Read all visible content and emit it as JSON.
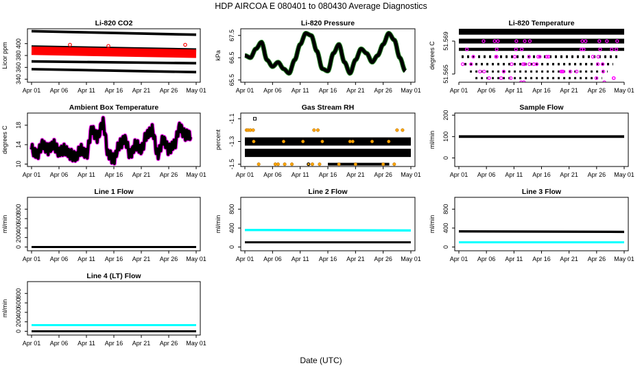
{
  "title": "HDP    AIRCOA E    080401 to 080430    Average Diagnostics",
  "xlabel": "Date (UTC)",
  "x_ticks": [
    "Apr 01",
    "Apr 06",
    "Apr 11",
    "Apr 16",
    "Apr 21",
    "Apr 26",
    "May 01"
  ],
  "colors": {
    "black": "#000000",
    "red": "#ff0000",
    "green": "#2e8b2e",
    "magenta": "#ff00ff",
    "orange": "#ffa500",
    "cyan": "#00ffff",
    "blue": "#2030c0"
  },
  "chart_data": [
    {
      "id": "co2",
      "type": "scatter",
      "title": "Li-820 CO2",
      "ylabel": "Licor ppm",
      "yticks": [
        "340",
        "360",
        "380",
        "400"
      ],
      "ylim": [
        335,
        425
      ],
      "series": [
        {
          "name": "high",
          "color": "black",
          "mode": "line",
          "y0": 421,
          "y1": 415
        },
        {
          "name": "upper",
          "color": "black",
          "mode": "line",
          "y0": 395,
          "y1": 390
        },
        {
          "name": "sample",
          "color": "red",
          "mode": "band",
          "y0": 388,
          "y1": 383,
          "spread": 5
        },
        {
          "name": "low-mid",
          "color": "black",
          "mode": "line",
          "y0": 370,
          "y1": 367
        },
        {
          "name": "low",
          "color": "black",
          "mode": "line",
          "y0": 357,
          "y1": 352
        }
      ]
    },
    {
      "id": "pressure",
      "type": "line",
      "title": "Li-820 Pressure",
      "ylabel": "kPa",
      "yticks": [
        "65.5",
        "66.5",
        "67.5"
      ],
      "ylim": [
        65.4,
        67.8
      ],
      "series": [
        {
          "name": "pressure",
          "color": "black",
          "outline": "green",
          "x": [
            0,
            1,
            2,
            3,
            4,
            5,
            6,
            7,
            8,
            9,
            10,
            11,
            12,
            13,
            14,
            15,
            16,
            17,
            18,
            19,
            20,
            21,
            22,
            23,
            24,
            25,
            26,
            27,
            28,
            29
          ],
          "y": [
            66.6,
            66.5,
            66.9,
            67.2,
            66.4,
            66.1,
            66.3,
            66.0,
            65.8,
            66.4,
            67.1,
            67.6,
            67.5,
            66.8,
            66.0,
            65.9,
            66.7,
            67.1,
            66.3,
            65.8,
            66.4,
            66.9,
            66.7,
            66.3,
            66.6,
            67.1,
            67.6,
            67.3,
            66.5,
            65.9
          ]
        }
      ]
    },
    {
      "id": "licor_temp",
      "type": "scatter",
      "title": "Li-820 Temperature",
      "ylabel": "degrees C",
      "yticks": [
        "51.565",
        "51.569"
      ],
      "ylim": [
        51.564,
        51.5705
      ],
      "levels": [
        51.5702,
        51.569,
        51.568,
        51.5671,
        51.5662,
        51.5653,
        51.5645
      ],
      "series": [
        {
          "name": "temp",
          "color": "black"
        },
        {
          "name": "outliers",
          "color": "magenta"
        }
      ]
    },
    {
      "id": "ambient",
      "type": "line",
      "title": "Ambient Box Temperature",
      "ylabel": "degrees C",
      "yticks": [
        "10",
        "14",
        "18"
      ],
      "ylim": [
        9.5,
        20.5
      ],
      "series": [
        {
          "name": "ambient",
          "color": "black",
          "outline": "magenta",
          "x": [
            0,
            1,
            2,
            3,
            4,
            5,
            6,
            7,
            8,
            9,
            10,
            11,
            12,
            13,
            14,
            15,
            16,
            17,
            18,
            19,
            20,
            21,
            22,
            23,
            24,
            25,
            26,
            27,
            28,
            29
          ],
          "y": [
            13,
            12,
            14,
            13,
            14,
            12.5,
            13,
            12,
            11.5,
            13,
            12,
            17,
            15.5,
            18.5,
            12,
            11,
            14,
            15,
            12,
            14,
            13,
            16,
            17,
            12,
            15,
            13,
            14,
            17.5,
            16,
            16
          ]
        }
      ]
    },
    {
      "id": "rh",
      "type": "scatter",
      "title": "Gas Stream RH",
      "ylabel": "percent",
      "yticks": [
        "-1.5",
        "-1.3",
        "-1.1"
      ],
      "ylim": [
        -1.52,
        -1.05
      ],
      "series": [
        {
          "name": "mid",
          "color": "black",
          "mode": "line",
          "y0": -1.3,
          "y1": -1.3
        },
        {
          "name": "low",
          "color": "black",
          "mode": "line",
          "y0": -1.4,
          "y1": -1.4
        },
        {
          "name": "bottom",
          "color": "black",
          "mode": "segment",
          "y0": -1.5,
          "x0": 0.5,
          "x1": 0.87
        },
        {
          "name": "flags",
          "color": "orange",
          "mode": "points"
        }
      ]
    },
    {
      "id": "sample_flow",
      "type": "line",
      "title": "Sample Flow",
      "ylabel": "ml/min",
      "yticks": [
        "0",
        "100",
        "200"
      ],
      "ylim": [
        -40,
        210
      ],
      "series": [
        {
          "name": "flow",
          "color": "black",
          "mode": "line",
          "y0": 100,
          "y1": 100,
          "spread": 6
        }
      ]
    },
    {
      "id": "line1",
      "type": "line",
      "title": "Line 1 Flow",
      "ylabel": "ml/min",
      "yticks": [
        "0",
        "200",
        "400",
        "600",
        "800"
      ],
      "ylim": [
        -80,
        1050
      ],
      "series": [
        {
          "name": "flow",
          "color": "black",
          "mode": "line",
          "y0": 0,
          "y1": 0
        }
      ]
    },
    {
      "id": "line2",
      "type": "line",
      "title": "Line 2 Flow",
      "ylabel": "ml/min",
      "yticks": [
        "0",
        "400",
        "800"
      ],
      "ylim": [
        -80,
        1050
      ],
      "series": [
        {
          "name": "cyan",
          "color": "cyan",
          "mode": "line",
          "y0": 360,
          "y1": 350,
          "spread": 20
        },
        {
          "name": "black",
          "color": "black",
          "mode": "line",
          "y0": 100,
          "y1": 100,
          "spread": 8
        }
      ]
    },
    {
      "id": "line3",
      "type": "line",
      "title": "Line 3 Flow",
      "ylabel": "ml/min",
      "yticks": [
        "0",
        "400",
        "800"
      ],
      "ylim": [
        -80,
        1050
      ],
      "series": [
        {
          "name": "black",
          "color": "black",
          "mode": "line",
          "y0": 330,
          "y1": 320,
          "spread": 20
        },
        {
          "name": "cyan",
          "color": "cyan",
          "mode": "line",
          "y0": 100,
          "y1": 100,
          "spread": 10
        }
      ]
    },
    {
      "id": "line4",
      "type": "line",
      "title": "Line 4 (LT) Flow",
      "ylabel": "ml/min",
      "yticks": [
        "0",
        "200",
        "400",
        "600",
        "800"
      ],
      "ylim": [
        -80,
        1050
      ],
      "series": [
        {
          "name": "cyan",
          "color": "cyan",
          "mode": "line",
          "y0": 130,
          "y1": 130,
          "spread": 10
        },
        {
          "name": "black",
          "color": "black",
          "mode": "line",
          "y0": 0,
          "y1": 0
        }
      ]
    }
  ]
}
